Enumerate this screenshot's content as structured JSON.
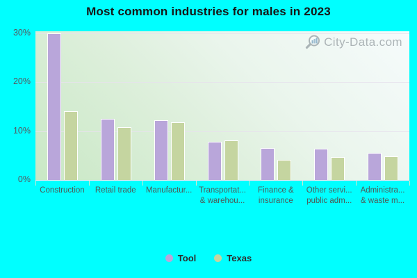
{
  "title": "Most common industries for males in 2023",
  "watermark": "City-Data.com",
  "colors": {
    "background": "#00ffff",
    "series_tool": "#b9a6da",
    "series_texas": "#c5d5a0",
    "bar_border": "#ffffff",
    "gridline": "#e6e2ec",
    "axis_text": "#56565f",
    "category_text": "#4e5a56",
    "title_text": "#161616",
    "watermark_text": "#9ba3a7"
  },
  "legend": {
    "items": [
      {
        "label": "Tool",
        "color": "#b9a6da"
      },
      {
        "label": "Texas",
        "color": "#c5d5a0"
      }
    ]
  },
  "chart_data": {
    "type": "bar",
    "title": "Most common industries for males in 2023",
    "categories": [
      "Construction",
      "Retail trade",
      "Manufacturing",
      "Transportation & warehousing",
      "Finance & insurance",
      "Other services, public administration",
      "Administrative & waste management"
    ],
    "category_labels_displayed": [
      [
        "Construction"
      ],
      [
        "Retail trade"
      ],
      [
        "Manufactur..."
      ],
      [
        "Transportat...",
        "& warehou..."
      ],
      [
        "Finance &",
        "insurance"
      ],
      [
        "Other servi...",
        "public adm..."
      ],
      [
        "Administra...",
        "& waste m..."
      ]
    ],
    "series": [
      {
        "name": "Tool",
        "color": "#b9a6da",
        "values": [
          29.9,
          12.4,
          12.1,
          7.7,
          6.4,
          6.3,
          5.4
        ]
      },
      {
        "name": "Texas",
        "color": "#c5d5a0",
        "values": [
          13.9,
          10.6,
          11.7,
          8.0,
          4.0,
          4.5,
          4.7
        ]
      }
    ],
    "xlabel": "",
    "ylabel": "",
    "yticks": [
      {
        "label": "0%",
        "value": 0
      },
      {
        "label": "10%",
        "value": 10
      },
      {
        "label": "20%",
        "value": 20
      },
      {
        "label": "30%",
        "value": 30
      }
    ],
    "ylim": [
      0,
      30
    ],
    "grid": true,
    "legend_position": "bottom"
  }
}
